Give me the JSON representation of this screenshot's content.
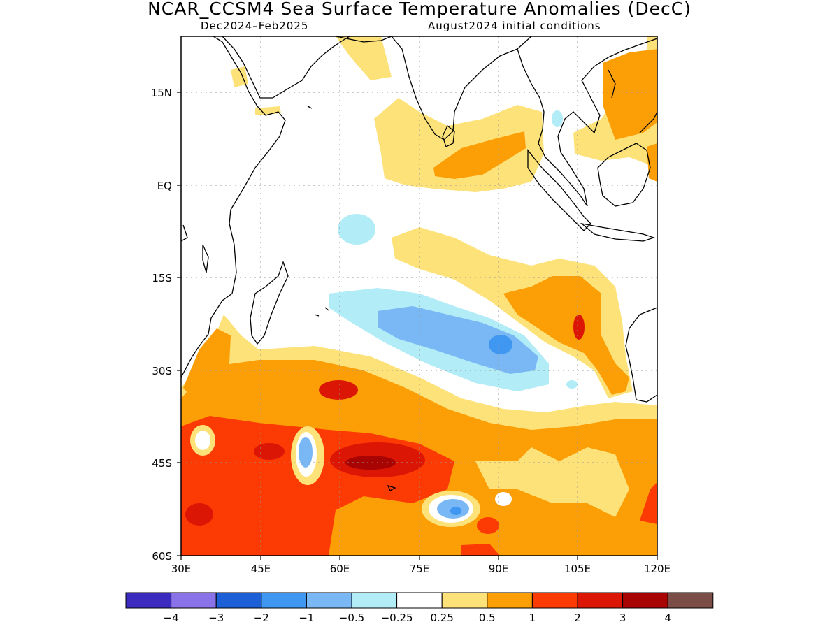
{
  "title": "NCAR_CCSM4 Sea Surface Temperature Anomalies (DecC)",
  "subtitle_left": "Dec2024–Feb2025",
  "subtitle_right": "August2024 initial conditions",
  "map": {
    "lon_range": [
      30,
      120
    ],
    "lat_range": [
      -60,
      24
    ],
    "lon_ticks": [
      "30E",
      "45E",
      "60E",
      "75E",
      "90E",
      "105E",
      "120E"
    ],
    "lat_ticks": [
      "15N",
      "EQ",
      "15S",
      "30S",
      "45S",
      "60S"
    ],
    "gridlines": "dotted"
  },
  "colorbar": {
    "labels": [
      "−4",
      "−3",
      "−2",
      "−1",
      "−0.5",
      "−0.25",
      "0.25",
      "0.5",
      "1",
      "2",
      "3",
      "4"
    ],
    "colors": [
      "#3b2bbf",
      "#8a72e8",
      "#1d5fd6",
      "#3f97f2",
      "#7ab8f5",
      "#b1ecf7",
      "#ffffff",
      "#fde27a",
      "#fc9e06",
      "#fc3a04",
      "#dc1604",
      "#a80404",
      "#7a4e46"
    ]
  },
  "chart_data": {
    "type": "heatmap",
    "title": "NCAR_CCSM4 Sea Surface Temperature Anomalies (DecC)",
    "units": "DecC",
    "x_axis": "longitude",
    "y_axis": "latitude",
    "xlim": [
      30,
      120
    ],
    "ylim": [
      -60,
      24
    ]
  }
}
